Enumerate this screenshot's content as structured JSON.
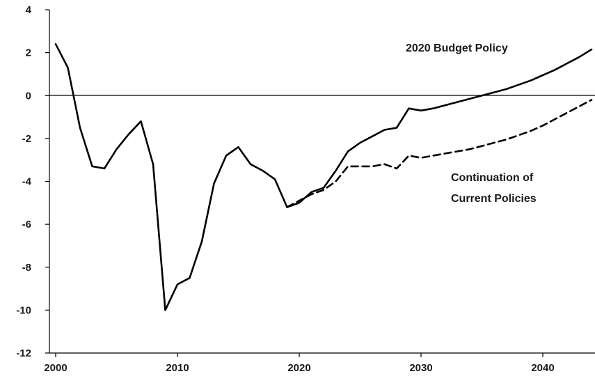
{
  "chart_data": {
    "type": "line",
    "title": "",
    "xlabel": "",
    "ylabel": "",
    "xlim": [
      1999,
      2044
    ],
    "ylim": [
      -12,
      4
    ],
    "x_ticks": [
      "2000",
      "2010",
      "2020",
      "2030",
      "2040"
    ],
    "y_ticks": [
      "4",
      "2",
      "0",
      "-2",
      "-4",
      "-6",
      "-8",
      "-10",
      "-12"
    ],
    "grid": false,
    "zero_line": true,
    "series": [
      {
        "name": "2020 Budget Policy",
        "style": "solid",
        "color": "#000000",
        "x": [
          2000,
          2001,
          2002,
          2003,
          2004,
          2005,
          2006,
          2007,
          2008,
          2009,
          2010,
          2011,
          2012,
          2013,
          2014,
          2015,
          2016,
          2017,
          2018,
          2019,
          2020,
          2021,
          2022,
          2023,
          2024,
          2025,
          2026,
          2027,
          2028,
          2029,
          2030,
          2031,
          2032,
          2033,
          2034,
          2035,
          2036,
          2037,
          2038,
          2039,
          2040,
          2041,
          2042,
          2043,
          2044
        ],
        "values": [
          2.4,
          1.3,
          -1.5,
          -3.3,
          -3.4,
          -2.5,
          -1.8,
          -1.2,
          -3.2,
          -10.0,
          -8.8,
          -8.5,
          -6.8,
          -4.1,
          -2.8,
          -2.4,
          -3.2,
          -3.5,
          -3.9,
          -5.2,
          -5.0,
          -4.5,
          -4.3,
          -3.5,
          -2.6,
          -2.2,
          -1.9,
          -1.6,
          -1.5,
          -0.6,
          -0.7,
          -0.6,
          -0.45,
          -0.3,
          -0.15,
          0.0,
          0.15,
          0.3,
          0.5,
          0.7,
          0.95,
          1.2,
          1.5,
          1.8,
          2.15
        ]
      },
      {
        "name": "Continuation of Current Policies",
        "style": "dashed",
        "color": "#000000",
        "x": [
          2019,
          2020,
          2021,
          2022,
          2023,
          2024,
          2025,
          2026,
          2027,
          2028,
          2029,
          2030,
          2031,
          2032,
          2033,
          2034,
          2035,
          2036,
          2037,
          2038,
          2039,
          2040,
          2041,
          2042,
          2043,
          2044
        ],
        "values": [
          -5.2,
          -4.9,
          -4.6,
          -4.4,
          -4.0,
          -3.3,
          -3.3,
          -3.3,
          -3.2,
          -3.4,
          -2.8,
          -2.9,
          -2.8,
          -2.7,
          -2.6,
          -2.5,
          -2.35,
          -2.2,
          -2.05,
          -1.85,
          -1.65,
          -1.4,
          -1.1,
          -0.8,
          -0.5,
          -0.2
        ]
      }
    ],
    "annotations": [
      {
        "text": "2020 Budget Policy"
      },
      {
        "text": "Continuation of",
        "text2": "Current Policies"
      }
    ]
  }
}
